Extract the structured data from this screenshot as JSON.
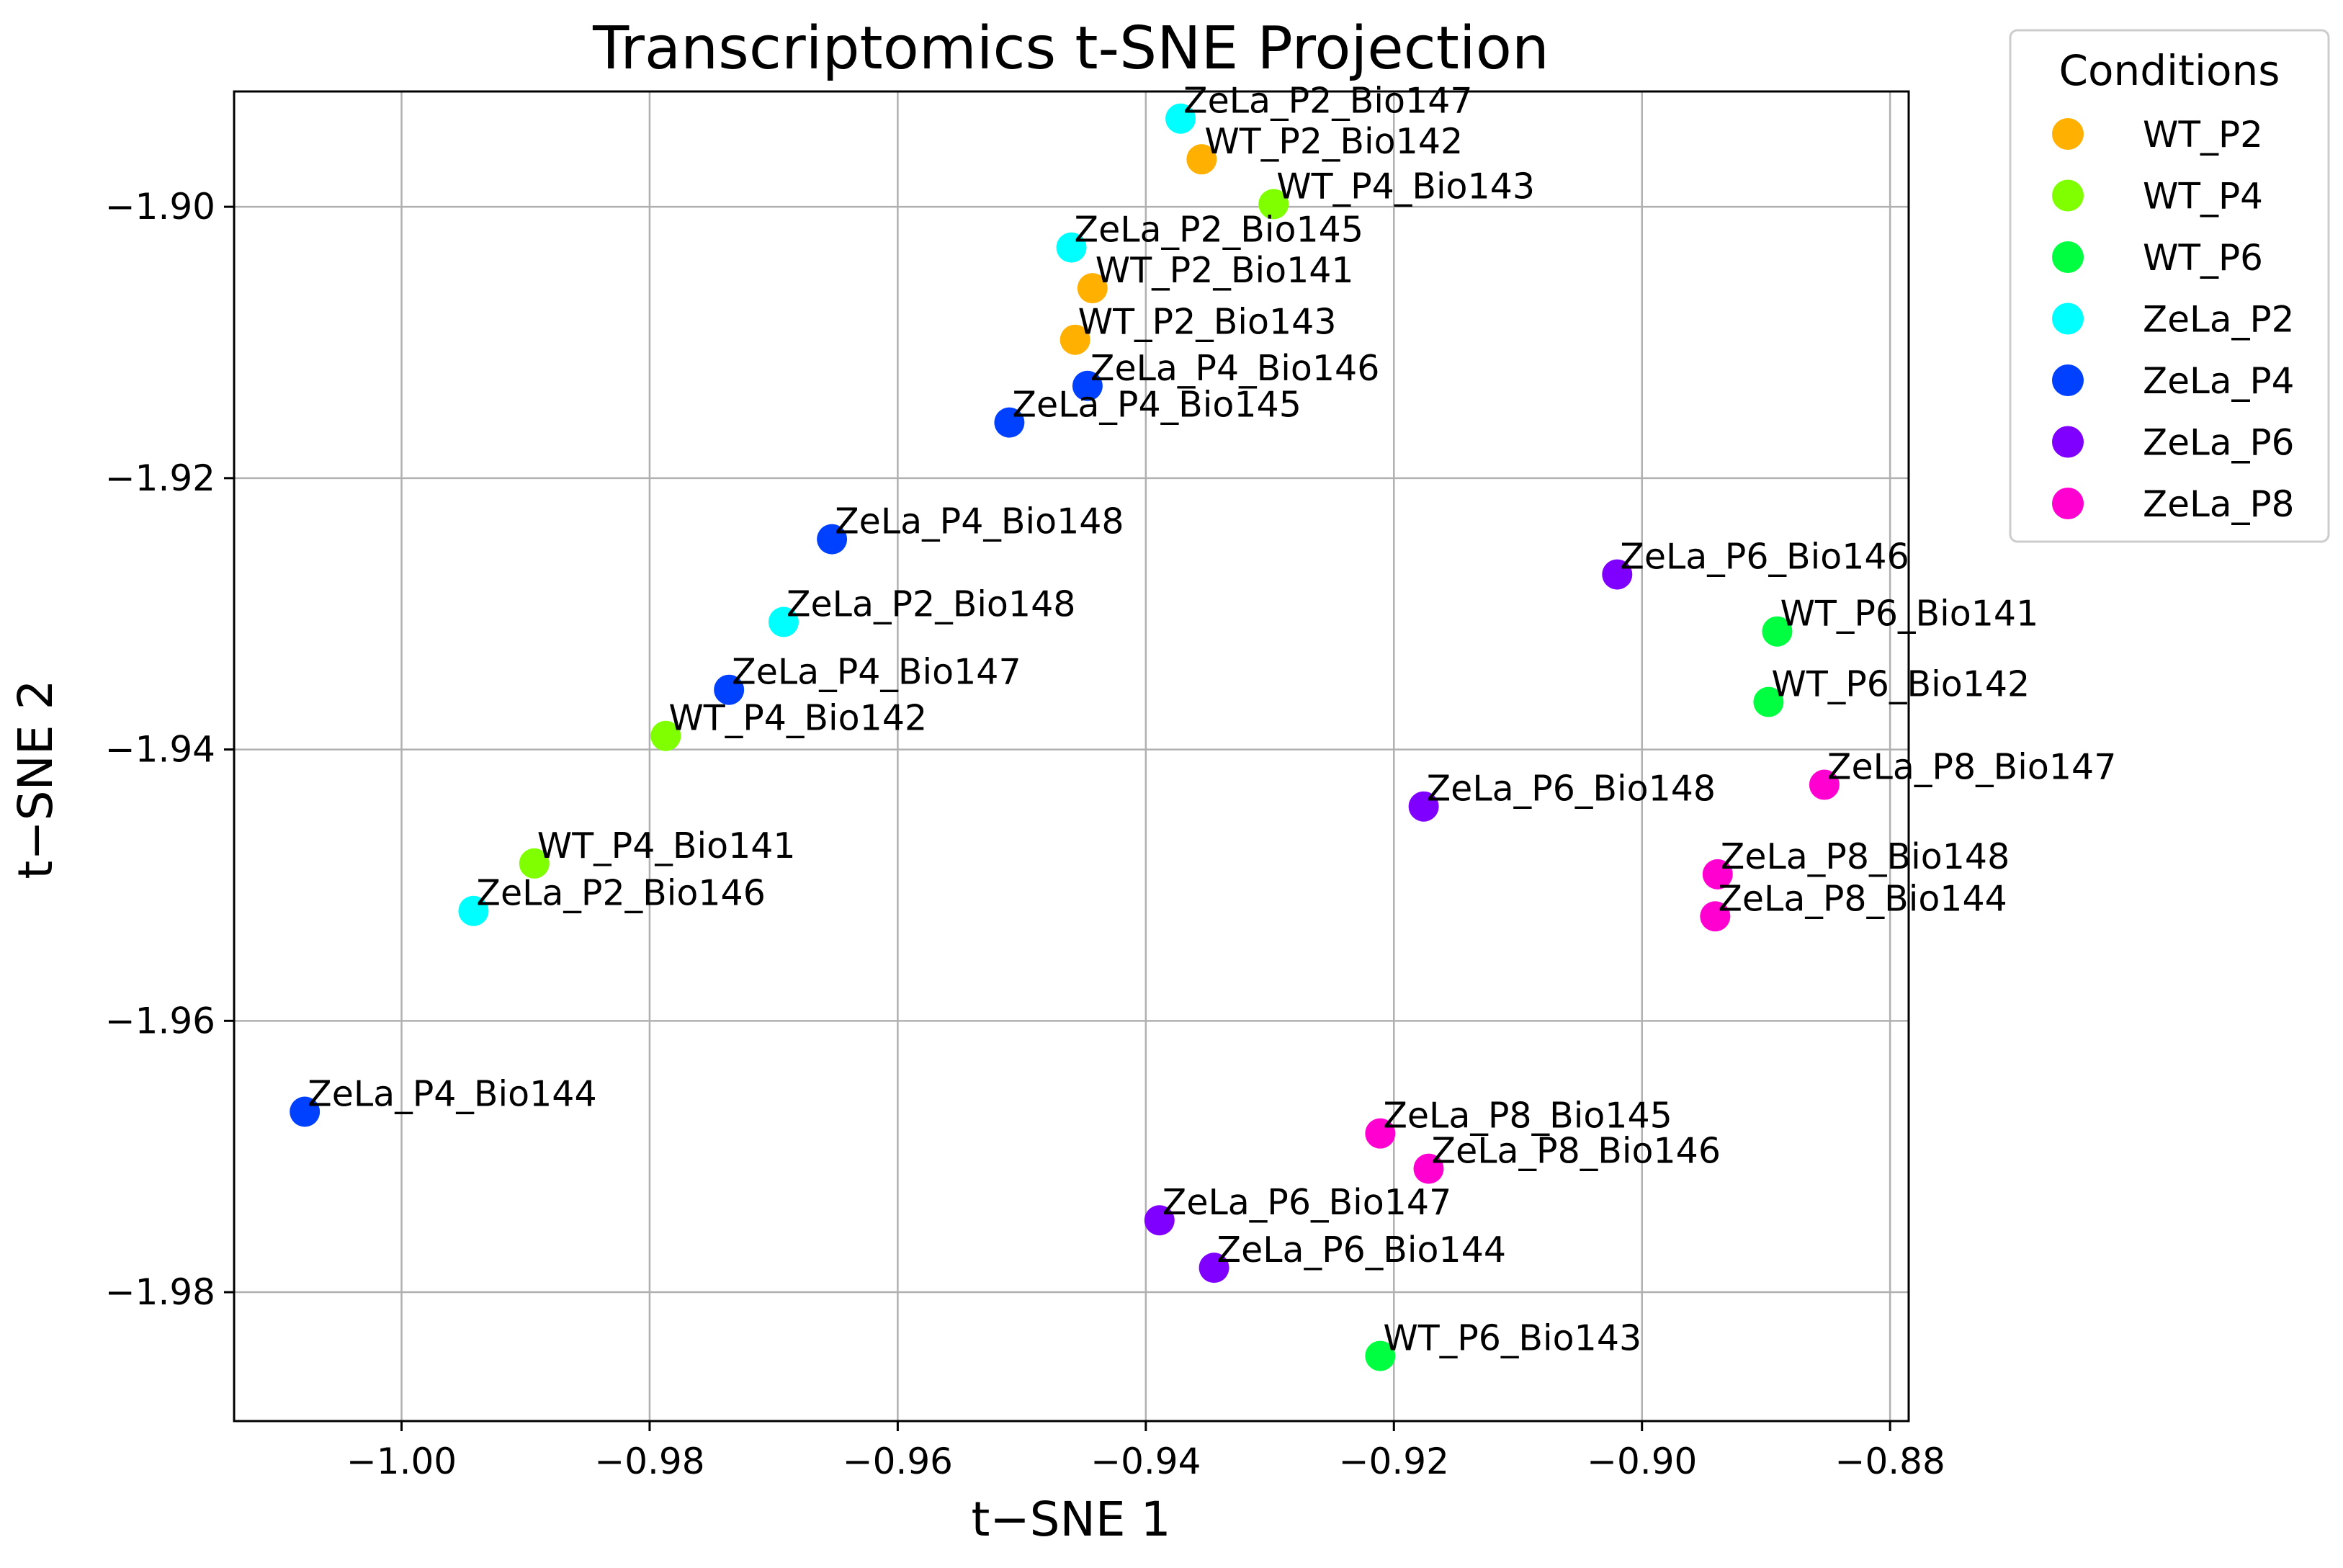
{
  "chart_data": {
    "type": "scatter",
    "title": "Transcriptomics t-SNE Projection",
    "xlabel": "t−SNE 1",
    "ylabel": "t−SNE 2",
    "xlim": [
      -1.0135,
      -0.8785
    ],
    "ylim": [
      -1.9895,
      -1.8915
    ],
    "xticks": [
      -1.0,
      -0.98,
      -0.96,
      -0.94,
      -0.92,
      -0.9,
      -0.88
    ],
    "xtick_labels": [
      "−1.00",
      "−0.98",
      "−0.96",
      "−0.94",
      "−0.92",
      "−0.90",
      "−0.88"
    ],
    "yticks": [
      -1.9,
      -1.92,
      -1.94,
      -1.96,
      -1.98
    ],
    "ytick_labels": [
      "−1.90",
      "−1.92",
      "−1.94",
      "−1.96",
      "−1.98"
    ],
    "grid": true,
    "legend": {
      "title": "Conditions",
      "placement": "outside-top-right",
      "entries": [
        {
          "name": "WT_P2",
          "color": "#ffb000"
        },
        {
          "name": "WT_P4",
          "color": "#80ff00"
        },
        {
          "name": "WT_P6",
          "color": "#00ff40"
        },
        {
          "name": "ZeLa_P2",
          "color": "#00ffff"
        },
        {
          "name": "ZeLa_P4",
          "color": "#0040ff"
        },
        {
          "name": "ZeLa_P6",
          "color": "#7f00ff"
        },
        {
          "name": "ZeLa_P8",
          "color": "#ff00d0"
        }
      ]
    },
    "points": [
      {
        "label": "ZeLa_P2_Bio147",
        "group": "ZeLa_P2",
        "x": -0.9372,
        "y": -1.8935
      },
      {
        "label": "WT_P2_Bio142",
        "group": "WT_P2",
        "x": -0.9355,
        "y": -1.8965
      },
      {
        "label": "WT_P4_Bio143",
        "group": "WT_P4",
        "x": -0.9297,
        "y": -1.8998
      },
      {
        "label": "ZeLa_P2_Bio145",
        "group": "ZeLa_P2",
        "x": -0.946,
        "y": -1.903
      },
      {
        "label": "WT_P2_Bio141",
        "group": "WT_P2",
        "x": -0.9443,
        "y": -1.906
      },
      {
        "label": "WT_P2_Bio143",
        "group": "WT_P2",
        "x": -0.9457,
        "y": -1.9098
      },
      {
        "label": "ZeLa_P4_Bio146",
        "group": "ZeLa_P4",
        "x": -0.9447,
        "y": -1.9132
      },
      {
        "label": "ZeLa_P4_Bio145",
        "group": "ZeLa_P4",
        "x": -0.951,
        "y": -1.9159
      },
      {
        "label": "ZeLa_P4_Bio148",
        "group": "ZeLa_P4",
        "x": -0.9653,
        "y": -1.9245
      },
      {
        "label": "ZeLa_P2_Bio148",
        "group": "ZeLa_P2",
        "x": -0.9692,
        "y": -1.9306
      },
      {
        "label": "ZeLa_P4_Bio147",
        "group": "ZeLa_P4",
        "x": -0.9736,
        "y": -1.9356
      },
      {
        "label": "WT_P4_Bio142",
        "group": "WT_P4",
        "x": -0.9787,
        "y": -1.939
      },
      {
        "label": "WT_P4_Bio141",
        "group": "WT_P4",
        "x": -0.9893,
        "y": -1.9484
      },
      {
        "label": "ZeLa_P2_Bio146",
        "group": "ZeLa_P2",
        "x": -0.9942,
        "y": -1.9519
      },
      {
        "label": "ZeLa_P4_Bio144",
        "group": "ZeLa_P4",
        "x": -1.0078,
        "y": -1.9667
      },
      {
        "label": "ZeLa_P6_Bio146",
        "group": "ZeLa_P6",
        "x": -0.902,
        "y": -1.9271
      },
      {
        "label": "WT_P6_Bio141",
        "group": "WT_P6",
        "x": -0.8891,
        "y": -1.9313
      },
      {
        "label": "WT_P6_Bio142",
        "group": "WT_P6",
        "x": -0.8898,
        "y": -1.9365
      },
      {
        "label": "ZeLa_P8_Bio147",
        "group": "ZeLa_P8",
        "x": -0.8853,
        "y": -1.9426
      },
      {
        "label": "ZeLa_P6_Bio148",
        "group": "ZeLa_P6",
        "x": -0.9176,
        "y": -1.9442
      },
      {
        "label": "ZeLa_P8_Bio148",
        "group": "ZeLa_P8",
        "x": -0.8939,
        "y": -1.9492
      },
      {
        "label": "ZeLa_P8_Bio144",
        "group": "ZeLa_P8",
        "x": -0.8941,
        "y": -1.9523
      },
      {
        "label": "ZeLa_P8_Bio145",
        "group": "ZeLa_P8",
        "x": -0.9211,
        "y": -1.9683
      },
      {
        "label": "ZeLa_P8_Bio146",
        "group": "ZeLa_P8",
        "x": -0.9172,
        "y": -1.9709
      },
      {
        "label": "ZeLa_P6_Bio147",
        "group": "ZeLa_P6",
        "x": -0.9389,
        "y": -1.9747
      },
      {
        "label": "ZeLa_P6_Bio144",
        "group": "ZeLa_P6",
        "x": -0.9345,
        "y": -1.9782
      },
      {
        "label": "WT_P6_Bio143",
        "group": "WT_P6",
        "x": -0.9211,
        "y": -1.9847
      }
    ]
  }
}
